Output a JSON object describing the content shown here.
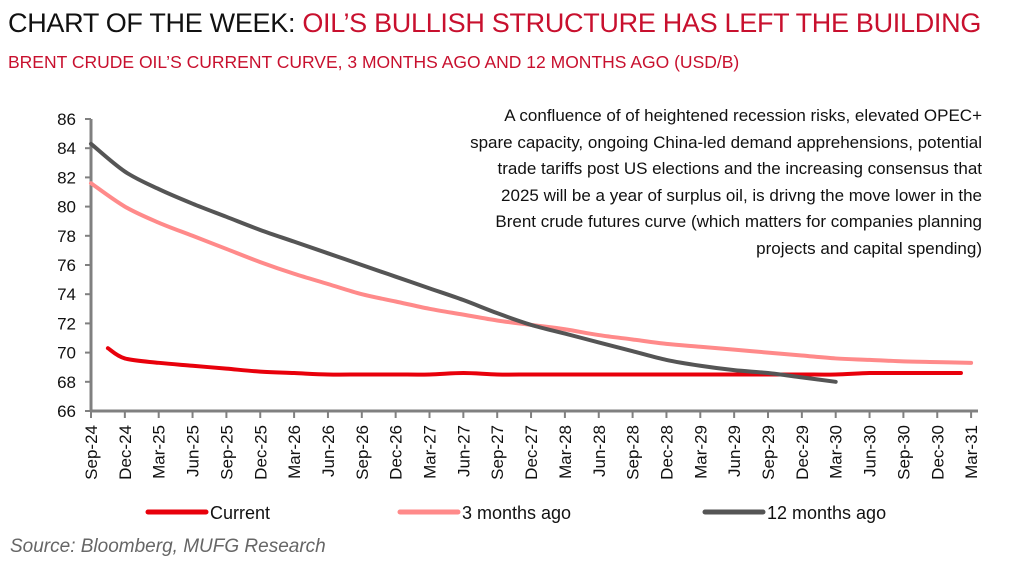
{
  "header": {
    "title_lead": "CHART OF THE WEEK: ",
    "title_rest": "OIL’S BULLISH STRUCTURE HAS LEFT THE BUILDING",
    "subtitle": "BRENT CRUDE OIL’S CURRENT CURVE, 3 MONTHS AGO AND 12 MONTHS AGO (USD/B)"
  },
  "annotation": "A confluence of of heightened recession risks, elevated OPEC+ spare capacity, ongoing China-led demand apprehensions, potential trade tariffs post US elections and the increasing consensus that 2025 will be a year of surplus oil, is drivng the move lower in the Brent crude futures curve (which matters for companies planning projects and capital spending)",
  "source": "Source: Bloomberg, MUFG Research",
  "colors": {
    "current": "#e8000b",
    "three_months": "#ff8a8a",
    "twelve_months": "#555555",
    "axis": "#808080"
  },
  "chart_data": {
    "type": "line",
    "title": "Brent crude oil's current curve, 3 months ago and 12 months ago",
    "xlabel": "",
    "ylabel": "USD/B",
    "ylim": [
      66,
      86
    ],
    "yticks": [
      66,
      68,
      70,
      72,
      74,
      76,
      78,
      80,
      82,
      84,
      86
    ],
    "categories": [
      "Sep-24",
      "Dec-24",
      "Mar-25",
      "Jun-25",
      "Sep-25",
      "Dec-25",
      "Mar-26",
      "Jun-26",
      "Sep-26",
      "Dec-26",
      "Mar-27",
      "Jun-27",
      "Sep-27",
      "Dec-27",
      "Mar-28",
      "Jun-28",
      "Sep-28",
      "Dec-28",
      "Mar-29",
      "Jun-29",
      "Sep-29",
      "Dec-29",
      "Mar-30",
      "Jun-30",
      "Sep-30",
      "Dec-30",
      "Mar-31"
    ],
    "grid": false,
    "legend": "bottom",
    "series": [
      {
        "name": "Current",
        "color_key": "current",
        "values": [
          null,
          69.6,
          69.3,
          69.1,
          68.9,
          68.7,
          68.6,
          68.5,
          68.5,
          68.5,
          68.5,
          68.6,
          68.5,
          68.5,
          68.5,
          68.5,
          68.5,
          68.5,
          68.5,
          68.5,
          68.5,
          68.5,
          68.5,
          68.6,
          68.6,
          68.6,
          null
        ],
        "start_value": 70.3,
        "end_value": 68.6
      },
      {
        "name": "3 months ago",
        "color_key": "three_months",
        "values": [
          81.6,
          80.0,
          78.9,
          78.0,
          77.1,
          76.2,
          75.4,
          74.7,
          74.0,
          73.5,
          73.0,
          72.6,
          72.2,
          71.9,
          71.6,
          71.2,
          70.9,
          70.6,
          70.4,
          70.2,
          70.0,
          69.8,
          69.6,
          69.5,
          69.4,
          69.35,
          69.3
        ]
      },
      {
        "name": "12 months ago",
        "color_key": "twelve_months",
        "values": [
          84.3,
          82.4,
          81.2,
          80.2,
          79.3,
          78.4,
          77.6,
          76.8,
          76.0,
          75.2,
          74.4,
          73.6,
          72.7,
          71.9,
          71.3,
          70.7,
          70.1,
          69.5,
          69.1,
          68.8,
          68.6,
          68.3,
          68.0,
          null,
          null,
          null,
          null
        ]
      }
    ]
  }
}
